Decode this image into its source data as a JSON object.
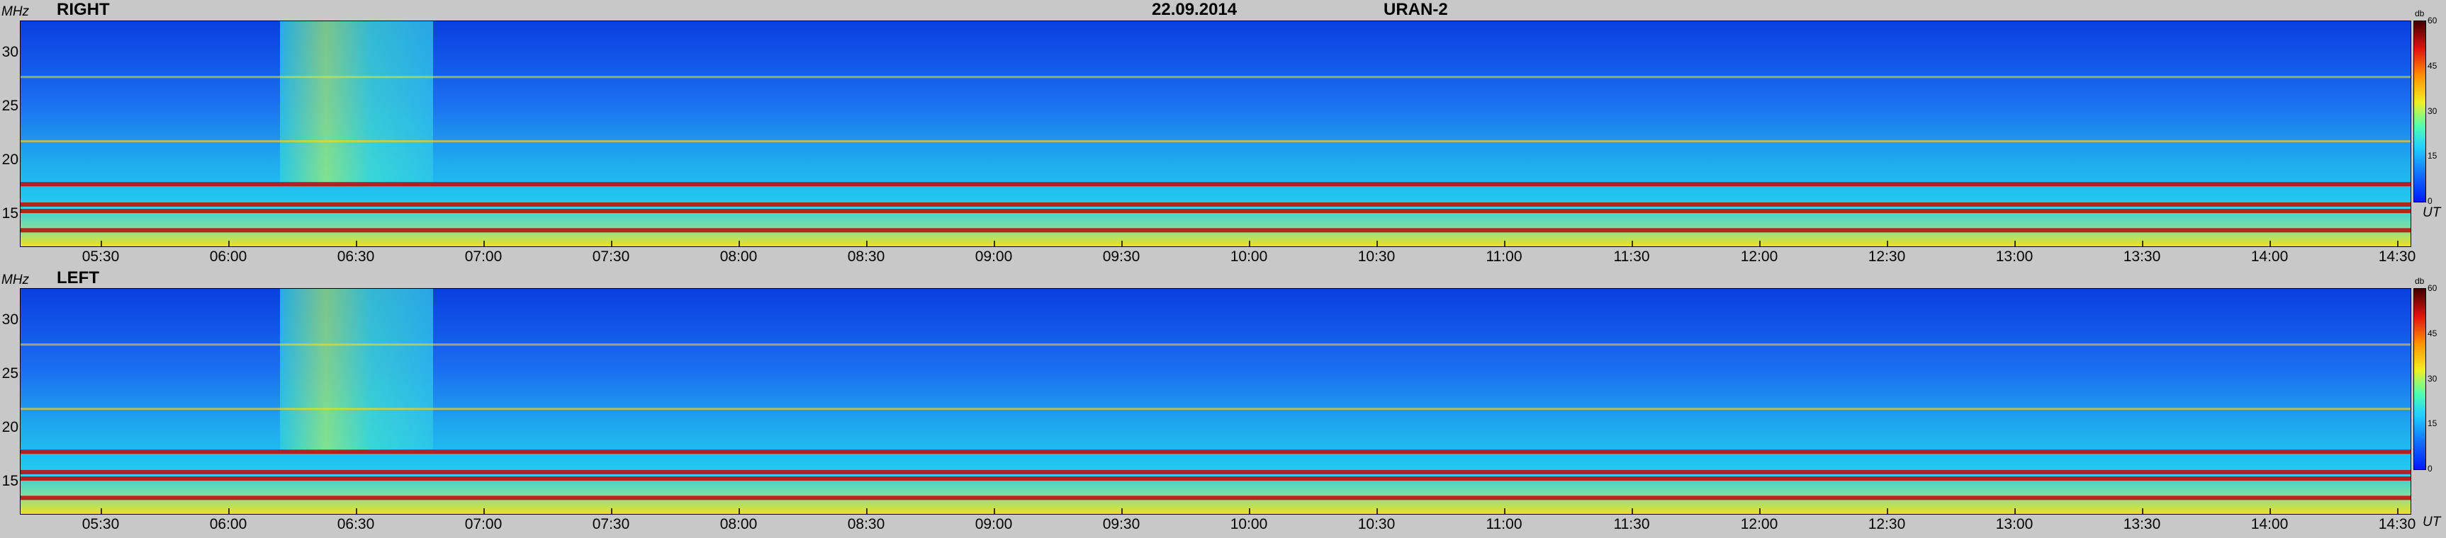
{
  "header": {
    "date": "22.09.2014",
    "station": "URAN-2"
  },
  "axes": {
    "y_unit": "MHz",
    "x_unit": "UT",
    "colorbar_unit": "db"
  },
  "colors": {
    "background": "#c8c8c8",
    "low": "#0a3fe0",
    "mid": "#22c8f0",
    "high": "#f0e020",
    "peak": "#c01010"
  },
  "chart_data": [
    {
      "type": "heatmap",
      "title": "RIGHT",
      "x_ticks": [
        "05:30",
        "06:00",
        "06:30",
        "07:00",
        "07:30",
        "08:00",
        "08:30",
        "09:00",
        "09:30",
        "10:00",
        "10:30",
        "11:00",
        "11:30",
        "12:00",
        "12:30",
        "13:00",
        "13:30",
        "14:00",
        "14:30"
      ],
      "y_ticks": [
        15,
        20,
        25,
        30
      ],
      "ylim": [
        12,
        33
      ],
      "colorbar": {
        "ticks": [
          0,
          15,
          30,
          45,
          60
        ],
        "range": [
          0,
          60
        ]
      },
      "bright_bands_mhz": [
        13.5,
        15.3,
        15.9,
        17.8,
        21.8,
        27.8
      ],
      "burst_interval_ut": [
        "06:12",
        "06:48"
      ]
    },
    {
      "type": "heatmap",
      "title": "LEFT",
      "x_ticks": [
        "05:30",
        "06:00",
        "06:30",
        "07:00",
        "07:30",
        "08:00",
        "08:30",
        "09:00",
        "09:30",
        "10:00",
        "10:30",
        "11:00",
        "11:30",
        "12:00",
        "12:30",
        "13:00",
        "13:30",
        "14:00",
        "14:30"
      ],
      "y_ticks": [
        15,
        20,
        25,
        30
      ],
      "ylim": [
        12,
        33
      ],
      "colorbar": {
        "ticks": [
          0,
          15,
          30,
          45,
          60
        ],
        "range": [
          0,
          60
        ]
      },
      "bright_bands_mhz": [
        13.5,
        15.3,
        15.9,
        17.8,
        21.8,
        27.8
      ],
      "burst_interval_ut": [
        "06:12",
        "06:48"
      ]
    }
  ]
}
